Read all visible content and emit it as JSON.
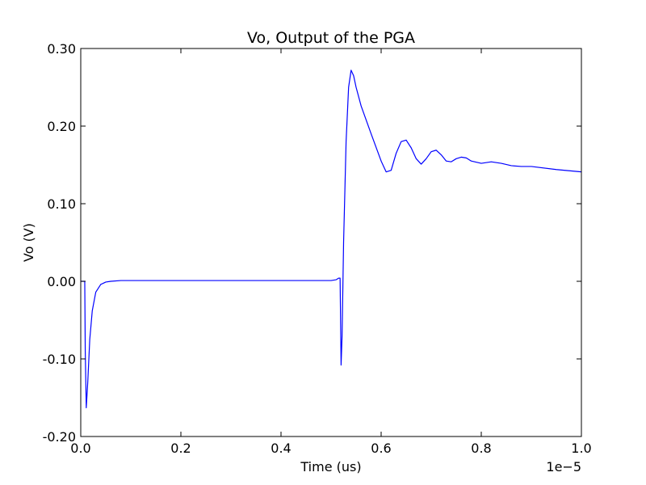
{
  "chart_data": {
    "type": "line",
    "title": "Vo, Output of the PGA",
    "xlabel": "Time (us)",
    "ylabel": "Vo (V)",
    "x_offset_label": "1e−5",
    "xlim": [
      0.0,
      1.0
    ],
    "ylim": [
      -0.2,
      0.3
    ],
    "x_ticks": [
      0.0,
      0.2,
      0.4,
      0.6,
      0.8,
      1.0
    ],
    "x_tick_labels": [
      "0.0",
      "0.2",
      "0.4",
      "0.6",
      "0.8",
      "1.0"
    ],
    "y_ticks": [
      -0.2,
      -0.1,
      0.0,
      0.1,
      0.2,
      0.3
    ],
    "y_tick_labels": [
      "-0.20",
      "-0.10",
      "0.00",
      "0.10",
      "0.20",
      "0.30"
    ],
    "grid": false,
    "line_color": "#0000ff",
    "series": [
      {
        "x": [
          0.0,
          0.008,
          0.009,
          0.011,
          0.014,
          0.018,
          0.023,
          0.03,
          0.04,
          0.05,
          0.06,
          0.08,
          0.1,
          0.2,
          0.3,
          0.4,
          0.5,
          0.51,
          0.515,
          0.518,
          0.52,
          0.522,
          0.525,
          0.53,
          0.535,
          0.54,
          0.545,
          0.55,
          0.56,
          0.58,
          0.6,
          0.61,
          0.62,
          0.63,
          0.64,
          0.65,
          0.66,
          0.67,
          0.68,
          0.69,
          0.7,
          0.71,
          0.72,
          0.73,
          0.74,
          0.75,
          0.76,
          0.77,
          0.78,
          0.8,
          0.82,
          0.84,
          0.86,
          0.88,
          0.9,
          0.95,
          1.0
        ],
        "y": [
          0.0,
          0.0,
          -0.09,
          -0.163,
          -0.13,
          -0.075,
          -0.038,
          -0.014,
          -0.004,
          -0.001,
          0.0,
          0.001,
          0.001,
          0.001,
          0.001,
          0.001,
          0.001,
          0.002,
          0.004,
          0.004,
          -0.108,
          -0.07,
          0.05,
          0.18,
          0.25,
          0.272,
          0.265,
          0.25,
          0.226,
          0.19,
          0.155,
          0.141,
          0.143,
          0.165,
          0.18,
          0.182,
          0.172,
          0.158,
          0.151,
          0.158,
          0.167,
          0.169,
          0.163,
          0.155,
          0.154,
          0.158,
          0.16,
          0.159,
          0.155,
          0.152,
          0.154,
          0.152,
          0.149,
          0.148,
          0.148,
          0.144,
          0.141
        ]
      }
    ]
  }
}
